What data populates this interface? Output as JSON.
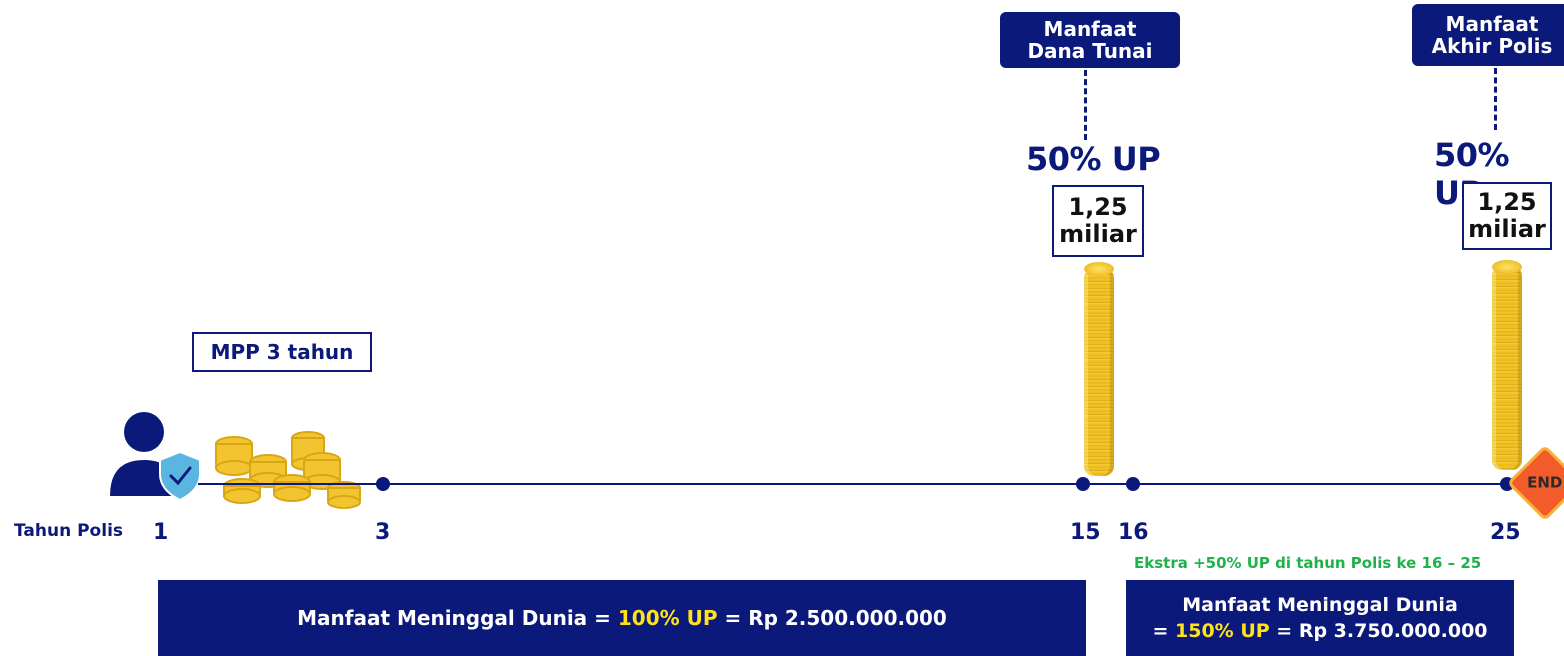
{
  "milestones": [
    {
      "tag_line1": "Manfaat",
      "tag_line2": "Dana Tunai",
      "percent": "50% UP",
      "amount_line1": "1,25",
      "amount_line2": "miliar"
    },
    {
      "tag_line1": "Manfaat",
      "tag_line2": "Akhir Polis",
      "percent": "50% UP",
      "amount_line1": "1,25",
      "amount_line2": "miliar"
    }
  ],
  "mpp_label": "MPP 3 tahun",
  "timeline": {
    "label": "Tahun Polis",
    "years": [
      "1",
      "3",
      "15",
      "16",
      "25"
    ]
  },
  "end_sign": "END",
  "ekstra_note": "Ekstra +50% UP di tahun Polis ke 16 – 25",
  "benefit_bar_1": {
    "prefix": "Manfaat Meninggal Dunia = ",
    "highlight": "100% UP",
    "suffix": " = Rp 2.500.000.000"
  },
  "benefit_bar_2": {
    "line1": "Manfaat Meninggal Dunia",
    "prefix": "= ",
    "highlight": "150% UP",
    "suffix": " = Rp 3.750.000.000"
  },
  "colors": {
    "navy": "#0b1a7a",
    "highlight_yellow": "#ffe21a",
    "ekstra_green": "#1fb24a",
    "coin_gold": "#f2c430"
  },
  "icons": [
    "user-shield-icon",
    "coin-pile-icon",
    "coin-stack-icon",
    "end-sign-icon"
  ]
}
